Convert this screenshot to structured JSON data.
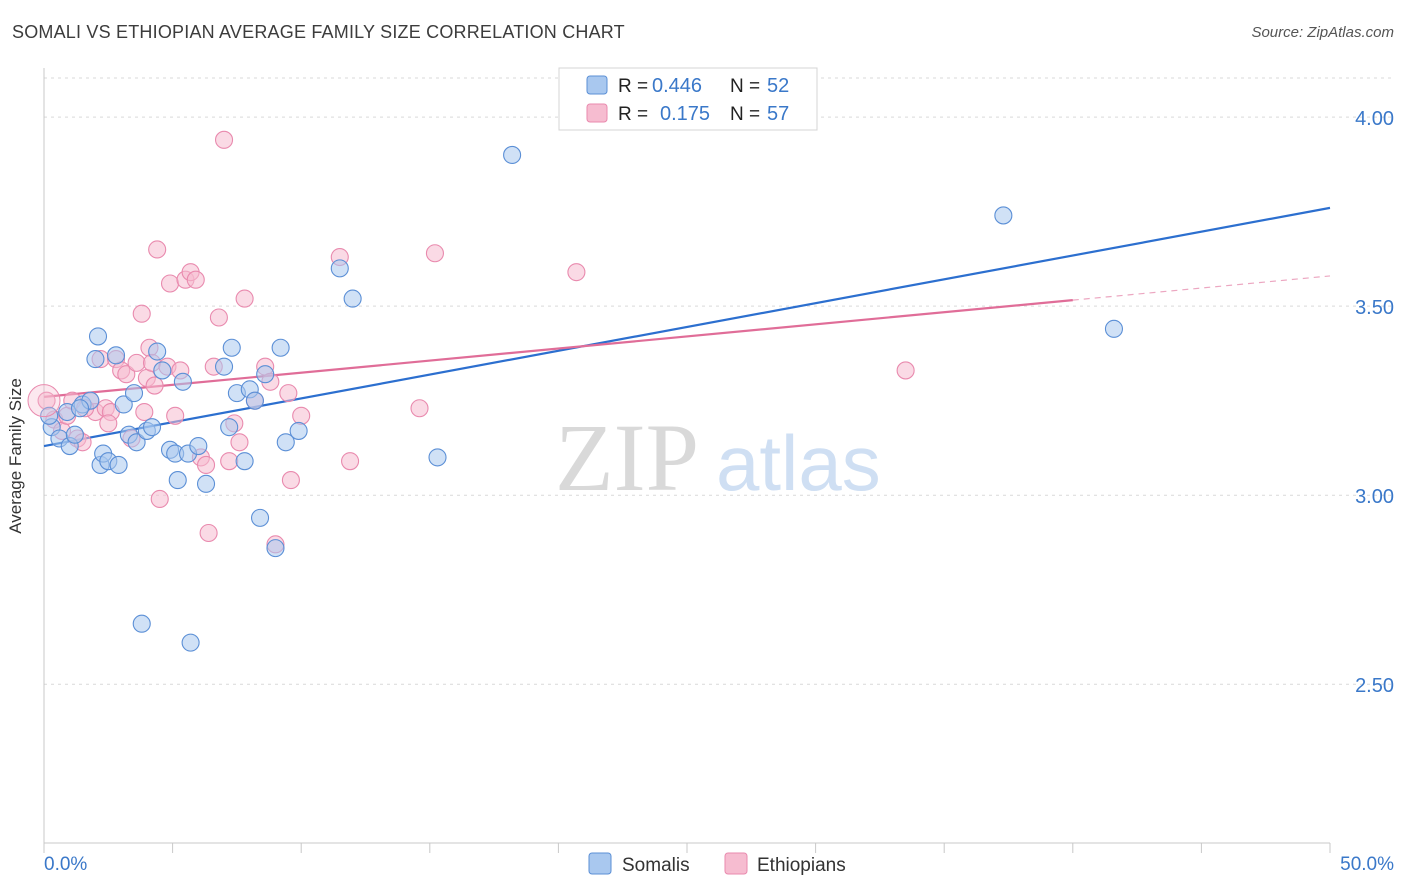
{
  "title": "SOMALI VS ETHIOPIAN AVERAGE FAMILY SIZE CORRELATION CHART",
  "source": "Source: ZipAtlas.com",
  "watermark": {
    "zip": "ZIP",
    "atlas": "atlas"
  },
  "colors": {
    "somali_fill": "#a9c8ef",
    "somali_stroke": "#5b8fd6",
    "somali_line": "#2c6fcf",
    "ethiopian_fill": "#f6bcd0",
    "ethiopian_stroke": "#e98aae",
    "ethiopian_line": "#e06d98",
    "axis_text": "#3a78c9",
    "grid": "#d9d9d9"
  },
  "legend": {
    "rows": [
      {
        "r_label": "R =",
        "r_value": "0.446",
        "n_label": "N =",
        "n_value": "52"
      },
      {
        "r_label": "R =",
        "r_value": "0.175",
        "n_label": "N =",
        "n_value": "57"
      }
    ]
  },
  "bottom_legend": [
    "Somalis",
    "Ethiopians"
  ],
  "chart_data": {
    "type": "scatter",
    "title": "SOMALI VS ETHIOPIAN AVERAGE FAMILY SIZE CORRELATION CHART",
    "xlabel": "",
    "ylabel": "Average Family Size",
    "xlim": [
      0,
      50
    ],
    "ylim": [
      2.08,
      4.13
    ],
    "x_tick_labels": [
      "0.0%",
      "50.0%"
    ],
    "y_ticks": [
      2.5,
      3.0,
      3.5,
      4.0
    ],
    "y_tick_labels": [
      "2.50",
      "3.00",
      "3.50",
      "4.00"
    ],
    "series": [
      {
        "name": "Somalis",
        "r": 0.446,
        "n": 52,
        "trend": {
          "x": [
            0,
            50
          ],
          "y": [
            3.13,
            3.76
          ],
          "dashed_from": null
        },
        "points": [
          [
            0.3,
            3.18
          ],
          [
            0.6,
            3.15
          ],
          [
            0.9,
            3.22
          ],
          [
            1.0,
            3.13
          ],
          [
            1.2,
            3.16
          ],
          [
            1.5,
            3.24
          ],
          [
            1.8,
            3.25
          ],
          [
            2.0,
            3.36
          ],
          [
            2.1,
            3.42
          ],
          [
            2.2,
            3.08
          ],
          [
            2.3,
            3.11
          ],
          [
            2.5,
            3.09
          ],
          [
            2.8,
            3.37
          ],
          [
            2.9,
            3.08
          ],
          [
            3.1,
            3.24
          ],
          [
            3.3,
            3.16
          ],
          [
            3.5,
            3.27
          ],
          [
            3.6,
            3.14
          ],
          [
            3.8,
            2.66
          ],
          [
            4.0,
            3.17
          ],
          [
            4.2,
            3.18
          ],
          [
            4.4,
            3.38
          ],
          [
            4.6,
            3.33
          ],
          [
            4.9,
            3.12
          ],
          [
            5.1,
            3.11
          ],
          [
            5.2,
            3.04
          ],
          [
            5.4,
            3.3
          ],
          [
            5.6,
            3.11
          ],
          [
            5.7,
            2.61
          ],
          [
            6.0,
            3.13
          ],
          [
            6.3,
            3.03
          ],
          [
            7.0,
            3.34
          ],
          [
            7.3,
            3.39
          ],
          [
            7.5,
            3.27
          ],
          [
            7.8,
            3.09
          ],
          [
            8.0,
            3.28
          ],
          [
            8.2,
            3.25
          ],
          [
            8.4,
            2.94
          ],
          [
            8.6,
            3.32
          ],
          [
            9.0,
            2.86
          ],
          [
            9.2,
            3.39
          ],
          [
            9.4,
            3.14
          ],
          [
            9.9,
            3.17
          ],
          [
            11.5,
            3.6
          ],
          [
            12.0,
            3.52
          ],
          [
            15.3,
            3.1
          ],
          [
            18.2,
            3.9
          ],
          [
            37.3,
            3.74
          ],
          [
            41.6,
            3.44
          ],
          [
            0.2,
            3.21
          ],
          [
            1.4,
            3.23
          ],
          [
            7.2,
            3.18
          ]
        ]
      },
      {
        "name": "Ethiopians",
        "r": 0.175,
        "n": 57,
        "trend": {
          "x": [
            0,
            50
          ],
          "y": [
            3.26,
            3.58
          ],
          "dashed_from": 40
        },
        "points": [
          [
            0.1,
            3.25
          ],
          [
            0.4,
            3.2
          ],
          [
            0.7,
            3.17
          ],
          [
            0.9,
            3.21
          ],
          [
            1.1,
            3.25
          ],
          [
            1.3,
            3.15
          ],
          [
            1.5,
            3.14
          ],
          [
            1.8,
            3.25
          ],
          [
            2.0,
            3.22
          ],
          [
            2.2,
            3.36
          ],
          [
            2.4,
            3.23
          ],
          [
            2.6,
            3.22
          ],
          [
            2.8,
            3.36
          ],
          [
            3.0,
            3.33
          ],
          [
            3.2,
            3.32
          ],
          [
            3.4,
            3.15
          ],
          [
            3.6,
            3.35
          ],
          [
            3.8,
            3.48
          ],
          [
            4.0,
            3.31
          ],
          [
            4.1,
            3.39
          ],
          [
            4.2,
            3.35
          ],
          [
            4.3,
            3.29
          ],
          [
            4.4,
            3.65
          ],
          [
            4.5,
            2.99
          ],
          [
            4.8,
            3.34
          ],
          [
            4.9,
            3.56
          ],
          [
            5.1,
            3.21
          ],
          [
            5.3,
            3.33
          ],
          [
            5.5,
            3.57
          ],
          [
            5.7,
            3.59
          ],
          [
            5.9,
            3.57
          ],
          [
            6.1,
            3.1
          ],
          [
            6.3,
            3.08
          ],
          [
            6.4,
            2.9
          ],
          [
            6.6,
            3.34
          ],
          [
            6.8,
            3.47
          ],
          [
            7.0,
            3.94
          ],
          [
            7.2,
            3.09
          ],
          [
            7.4,
            3.19
          ],
          [
            7.6,
            3.14
          ],
          [
            7.8,
            3.52
          ],
          [
            8.2,
            3.25
          ],
          [
            8.6,
            3.34
          ],
          [
            8.8,
            3.3
          ],
          [
            9.0,
            2.87
          ],
          [
            9.5,
            3.27
          ],
          [
            9.6,
            3.04
          ],
          [
            10.0,
            3.21
          ],
          [
            11.5,
            3.63
          ],
          [
            11.9,
            3.09
          ],
          [
            14.6,
            3.23
          ],
          [
            15.2,
            3.64
          ],
          [
            20.7,
            3.59
          ],
          [
            33.5,
            3.33
          ],
          [
            3.9,
            3.22
          ],
          [
            2.5,
            3.19
          ],
          [
            1.6,
            3.23
          ]
        ]
      }
    ]
  }
}
